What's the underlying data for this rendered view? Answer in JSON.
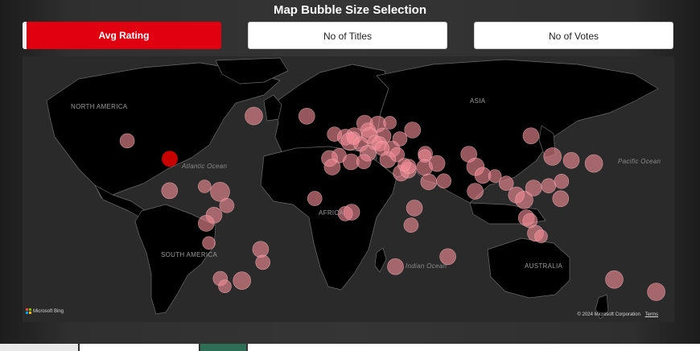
{
  "title": "Map Bubble Size Selection",
  "selection": {
    "buttons": [
      {
        "label": "Avg Rating",
        "active": true
      },
      {
        "label": "No of Titles",
        "active": false
      },
      {
        "label": "No of Votes",
        "active": false
      }
    ]
  },
  "map": {
    "continent_labels": [
      "NORTH AMERICA",
      "SOUTH AMERICA",
      "AFRICA",
      "ASIA",
      "AUSTRALIA"
    ],
    "ocean_labels": [
      "Atlantic Ocean",
      "Indian Ocean",
      "Pacific Ocean"
    ],
    "provider": "Microsoft Bing",
    "copyright": "© 2024 Microsoft Corporation",
    "terms": "Terms",
    "bubble_color": "#f08a95",
    "highlight_color": "#d30000",
    "bubbles": [
      {
        "lon": -123,
        "lat": 49.3,
        "size": 9
      },
      {
        "lon": -51.7,
        "lat": 64.2,
        "size": 11
      },
      {
        "lon": -21.9,
        "lat": 64.1,
        "size": 10
      },
      {
        "lon": 10.7,
        "lat": 59.9,
        "size": 10
      },
      {
        "lon": 18.1,
        "lat": 59.3,
        "size": 10
      },
      {
        "lon": 24.9,
        "lat": 60.2,
        "size": 8
      },
      {
        "lon": 104.3,
        "lat": 52.3,
        "size": 10
      },
      {
        "lon": 12.6,
        "lat": 55.7,
        "size": 9
      },
      {
        "lon": 21.0,
        "lat": 52.2,
        "size": 10
      },
      {
        "lon": 37.6,
        "lat": 55.8,
        "size": 10
      },
      {
        "lon": -6.3,
        "lat": 53.3,
        "size": 9
      },
      {
        "lon": -0.1,
        "lat": 51.5,
        "size": 10
      },
      {
        "lon": 4.9,
        "lat": 52.4,
        "size": 10
      },
      {
        "lon": 4.4,
        "lat": 50.8,
        "size": 8
      },
      {
        "lon": 13.4,
        "lat": 52.5,
        "size": 10
      },
      {
        "lon": 2.35,
        "lat": 48.9,
        "size": 11
      },
      {
        "lon": 8.5,
        "lat": 47.4,
        "size": 9
      },
      {
        "lon": 16.4,
        "lat": 48.2,
        "size": 9
      },
      {
        "lon": 19.0,
        "lat": 47.5,
        "size": 9
      },
      {
        "lon": 26.1,
        "lat": 44.4,
        "size": 10
      },
      {
        "lon": 30.5,
        "lat": 50.5,
        "size": 9
      },
      {
        "lon": 12.5,
        "lat": 41.9,
        "size": 10
      },
      {
        "lon": 23.7,
        "lat": 38.0,
        "size": 10
      },
      {
        "lon": 29.0,
        "lat": 41.0,
        "size": 9
      },
      {
        "lon": 20.5,
        "lat": 44.8,
        "size": 9
      },
      {
        "lon": -3.7,
        "lat": 40.4,
        "size": 9
      },
      {
        "lon": -9.1,
        "lat": 38.7,
        "size": 10
      },
      {
        "lon": 44.8,
        "lat": 41.7,
        "size": 9
      },
      {
        "lon": 44.5,
        "lat": 40.2,
        "size": 8
      },
      {
        "lon": 69.3,
        "lat": 41.3,
        "size": 10
      },
      {
        "lon": 116.4,
        "lat": 39.9,
        "size": 11
      },
      {
        "lon": 126.98,
        "lat": 37.57,
        "size": 10
      },
      {
        "lon": 139.7,
        "lat": 35.7,
        "size": 11
      },
      {
        "lon": -99.0,
        "lat": 38.5,
        "size": 10,
        "highlight": true
      },
      {
        "lon": -99.1,
        "lat": 19.4,
        "size": 10
      },
      {
        "lon": -79.4,
        "lat": 22.0,
        "size": 8
      },
      {
        "lon": -70.7,
        "lat": 18.7,
        "size": 12
      },
      {
        "lon": -74.1,
        "lat": 4.7,
        "size": 10
      },
      {
        "lon": -66.9,
        "lat": 10.5,
        "size": 9
      },
      {
        "lon": -78.5,
        "lat": -0.2,
        "size": 10
      },
      {
        "lon": -77.0,
        "lat": -12.0,
        "size": 8
      },
      {
        "lon": -47.9,
        "lat": -15.8,
        "size": 10
      },
      {
        "lon": -46.6,
        "lat": -23.6,
        "size": 9
      },
      {
        "lon": -70.6,
        "lat": -33.4,
        "size": 9
      },
      {
        "lon": -58.4,
        "lat": -34.6,
        "size": 11
      },
      {
        "lon": -68.0,
        "lat": -38.0,
        "size": 8
      },
      {
        "lon": -17.4,
        "lat": 14.7,
        "size": 9
      },
      {
        "lon": -7.6,
        "lat": 33.6,
        "size": 10
      },
      {
        "lon": 3.0,
        "lat": 36.7,
        "size": 10
      },
      {
        "lon": 10.2,
        "lat": 36.8,
        "size": 9
      },
      {
        "lon": 31.2,
        "lat": 30.0,
        "size": 10
      },
      {
        "lon": 35.2,
        "lat": 31.8,
        "size": 10
      },
      {
        "lon": 35.5,
        "lat": 33.9,
        "size": 9
      },
      {
        "lon": 33.0,
        "lat": 35.0,
        "size": 8
      },
      {
        "lon": 44.4,
        "lat": 33.3,
        "size": 10
      },
      {
        "lon": 51.4,
        "lat": 35.7,
        "size": 10
      },
      {
        "lon": 46.7,
        "lat": 24.7,
        "size": 10
      },
      {
        "lon": 55.3,
        "lat": 25.2,
        "size": 9
      },
      {
        "lon": 73.1,
        "lat": 33.7,
        "size": 11
      },
      {
        "lon": 77.2,
        "lat": 28.6,
        "size": 10
      },
      {
        "lon": 72.9,
        "lat": 19.1,
        "size": 10
      },
      {
        "lon": 90.4,
        "lat": 23.8,
        "size": 9
      },
      {
        "lon": 84.0,
        "lat": 28.2,
        "size": 8
      },
      {
        "lon": 96.1,
        "lat": 16.8,
        "size": 10
      },
      {
        "lon": 100.5,
        "lat": 13.8,
        "size": 11
      },
      {
        "lon": 105.8,
        "lat": 21.0,
        "size": 10
      },
      {
        "lon": 114.2,
        "lat": 22.3,
        "size": 9
      },
      {
        "lon": 121.5,
        "lat": 25.0,
        "size": 9
      },
      {
        "lon": 121.0,
        "lat": 14.6,
        "size": 10
      },
      {
        "lon": 101.7,
        "lat": 3.1,
        "size": 10
      },
      {
        "lon": 103.8,
        "lat": 1.35,
        "size": 9
      },
      {
        "lon": 106.8,
        "lat": -6.2,
        "size": 10
      },
      {
        "lon": 110.0,
        "lat": -8.0,
        "size": 8
      },
      {
        "lon": 38.7,
        "lat": 9.0,
        "size": 10
      },
      {
        "lon": 3.4,
        "lat": 6.5,
        "size": 10
      },
      {
        "lon": -0.2,
        "lat": 5.6,
        "size": 9
      },
      {
        "lon": 36.8,
        "lat": -1.3,
        "size": 9
      },
      {
        "lon": 57.5,
        "lat": -20.2,
        "size": 10
      },
      {
        "lon": 28.0,
        "lat": -26.2,
        "size": 10
      },
      {
        "lon": 151.2,
        "lat": -33.9,
        "size": 11
      },
      {
        "lon": 174.8,
        "lat": -41.3,
        "size": 11
      }
    ]
  },
  "footer_tabs": [
    {
      "color": "#e8e8e8"
    },
    {
      "color": "#ffffff"
    },
    {
      "color": "#2e6e57"
    },
    {
      "color": "#ffffff"
    }
  ]
}
